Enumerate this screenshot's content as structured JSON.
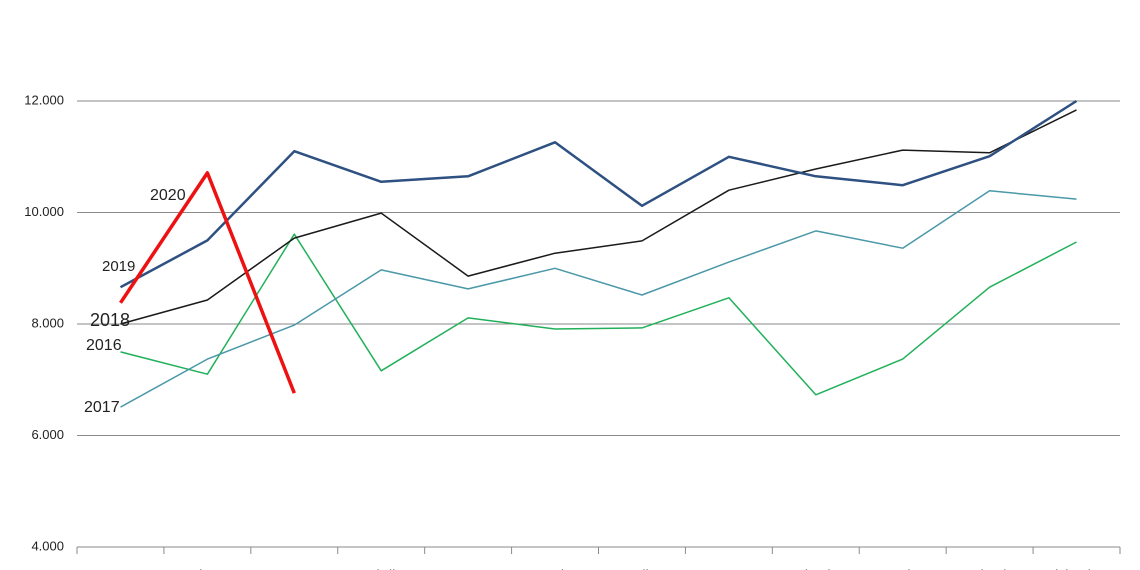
{
  "chart_data": {
    "type": "line",
    "categories": [
      "Enero",
      "Febrero",
      "Marzo",
      "Abril",
      "Mayo",
      "Junio",
      "Julio",
      "Agosto",
      "Setiembre",
      "Octubre",
      "Noviembre",
      "Diciembre"
    ],
    "series": [
      {
        "name": "2016",
        "color": "#22b05a",
        "values": [
          7500,
          7100,
          9610,
          7160,
          8110,
          7910,
          7930,
          8470,
          6730,
          7370,
          8660,
          9470
        ]
      },
      {
        "name": "2017",
        "color": "#4a98a8",
        "values": [
          6510,
          7370,
          7980,
          8970,
          8630,
          9000,
          8520,
          9110,
          9670,
          9360,
          10390,
          10240
        ]
      },
      {
        "name": "2018",
        "color": "#1a1a1a",
        "values": [
          8000,
          8430,
          9540,
          9990,
          8860,
          9270,
          9490,
          10400,
          10780,
          11120,
          11070,
          11840
        ]
      },
      {
        "name": "2019",
        "color": "#2e5181",
        "values": [
          8660,
          9500,
          11100,
          10550,
          10650,
          11260,
          10120,
          11000,
          10650,
          10490,
          11010,
          12000
        ]
      },
      {
        "name": "2020",
        "color": "#ee1111",
        "values": [
          8380,
          10710,
          6760,
          null,
          null,
          null,
          null,
          null,
          null,
          null,
          null,
          null
        ]
      }
    ],
    "ylim": [
      4000,
      12000
    ],
    "yticks": [
      {
        "value": 4000,
        "label": "4.000"
      },
      {
        "value": 6000,
        "label": "6.000"
      },
      {
        "value": 8000,
        "label": "8.000"
      },
      {
        "value": 10000,
        "label": "10.000"
      },
      {
        "value": 12000,
        "label": "12.000"
      }
    ],
    "grid": true
  }
}
